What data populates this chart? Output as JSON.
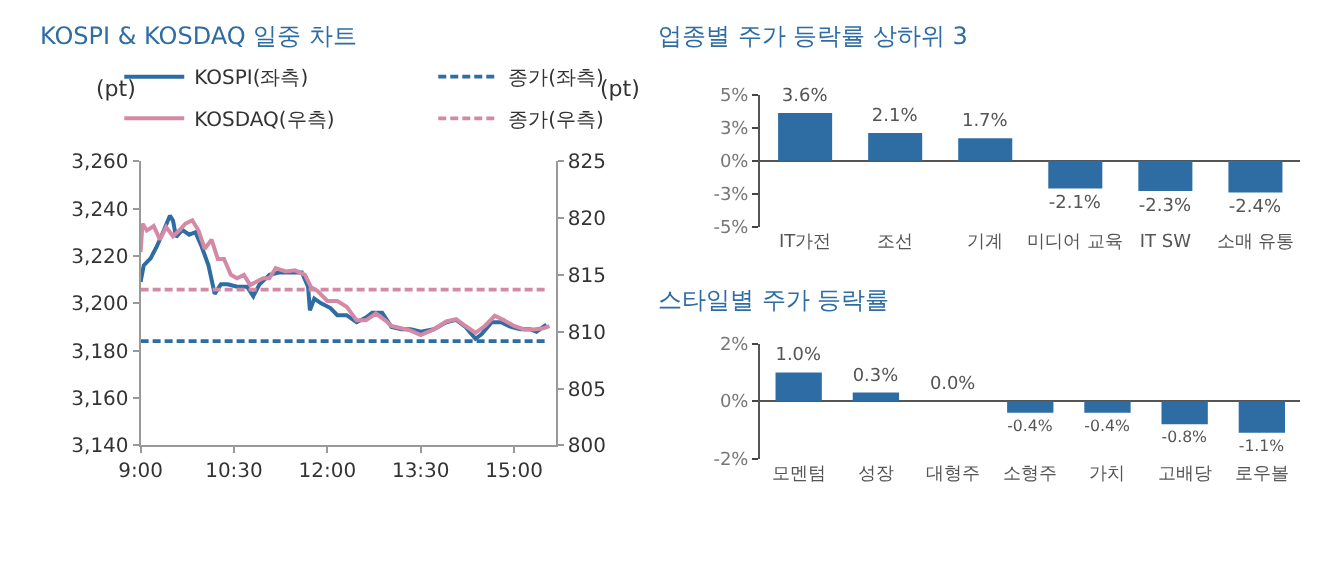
{
  "chart_data": [
    {
      "type": "line",
      "title": "KOSPI & KOSDAQ 일중 차트",
      "ylabel": "(pt)",
      "y2label": "(pt)",
      "legend": "top",
      "line_style": "solid",
      "xlim": [
        9,
        15.67
      ],
      "xticks": [
        {
          "value": 9,
          "label": "9:00"
        },
        {
          "value": 10.5,
          "label": "10:30"
        },
        {
          "value": 12,
          "label": "12:00"
        },
        {
          "value": 13.5,
          "label": "13:30"
        },
        {
          "value": 15,
          "label": "15:00"
        }
      ],
      "ylim": [
        3140,
        3260
      ],
      "yticks": [
        {
          "value": 3140,
          "label": "3,140"
        },
        {
          "value": 3160,
          "label": "3,160"
        },
        {
          "value": 3180,
          "label": "3,180"
        },
        {
          "value": 3200,
          "label": "3,200"
        },
        {
          "value": 3220,
          "label": "3,220"
        },
        {
          "value": 3240,
          "label": "3,240"
        },
        {
          "value": 3260,
          "label": "3,260"
        }
      ],
      "y2lim": [
        800,
        825
      ],
      "y2ticks": [
        800,
        805,
        810,
        815,
        820,
        825
      ],
      "series": [
        {
          "name": "KOSPI(좌측)",
          "color": "#2e6ca4",
          "axis": "y",
          "x": [
            9.0,
            9.05,
            9.16,
            9.26,
            9.36,
            9.47,
            9.52,
            9.57,
            9.67,
            9.78,
            9.88,
            9.98,
            10.09,
            10.19,
            10.29,
            10.4,
            10.55,
            10.71,
            10.81,
            10.91,
            11.07,
            11.22,
            11.43,
            11.59,
            11.69,
            11.72,
            11.79,
            11.9,
            12.05,
            12.16,
            12.31,
            12.47,
            12.62,
            12.72,
            12.88,
            13.03,
            13.19,
            13.34,
            13.5,
            13.71,
            13.91,
            14.07,
            14.22,
            14.38,
            14.48,
            14.64,
            14.79,
            14.95,
            15.1,
            15.26,
            15.36,
            15.52
          ],
          "values": [
            3209,
            3216,
            3219,
            3224,
            3230,
            3237,
            3235,
            3228,
            3231,
            3229,
            3230,
            3224,
            3216,
            3204,
            3208,
            3208,
            3207,
            3207,
            3203,
            3208,
            3212,
            3213,
            3213,
            3213,
            3207,
            3197,
            3202,
            3200,
            3198,
            3195,
            3195,
            3192,
            3194,
            3196,
            3196,
            3190,
            3189,
            3189,
            3188,
            3189,
            3192,
            3193,
            3190,
            3185,
            3187,
            3192,
            3192,
            3190,
            3189,
            3189,
            3188,
            3191
          ]
        },
        {
          "name": "종가(좌측)",
          "color": "#2e6ca4",
          "axis": "y",
          "line_style": "dashed",
          "x": [
            9.0,
            15.55
          ],
          "values": [
            3184,
            3184
          ]
        },
        {
          "name": "KOSDAQ(우측)",
          "color": "#d48aa5",
          "axis": "y2",
          "x": [
            9.0,
            9.03,
            9.1,
            9.21,
            9.31,
            9.41,
            9.52,
            9.62,
            9.72,
            9.83,
            9.93,
            10.03,
            10.14,
            10.24,
            10.34,
            10.45,
            10.55,
            10.66,
            10.76,
            10.86,
            10.97,
            11.07,
            11.17,
            11.33,
            11.48,
            11.64,
            11.74,
            11.84,
            12.0,
            12.16,
            12.31,
            12.47,
            12.62,
            12.78,
            12.93,
            13.03,
            13.19,
            13.34,
            13.5,
            13.71,
            13.91,
            14.07,
            14.22,
            14.38,
            14.53,
            14.69,
            14.84,
            15.0,
            15.16,
            15.31,
            15.47,
            15.57
          ],
          "values": [
            817.0,
            819.5,
            818.9,
            819.3,
            818.1,
            819.2,
            818.4,
            818.9,
            819.5,
            819.8,
            818.9,
            817.3,
            818.1,
            816.4,
            816.4,
            815.0,
            814.7,
            815.0,
            814.1,
            814.4,
            814.7,
            814.7,
            815.6,
            815.3,
            815.4,
            815.0,
            813.9,
            813.6,
            812.7,
            812.7,
            812.2,
            811.0,
            811.0,
            811.6,
            811.0,
            810.5,
            810.3,
            810.1,
            809.7,
            810.2,
            810.9,
            811.1,
            810.5,
            809.9,
            810.5,
            811.4,
            811.0,
            810.5,
            810.2,
            810.2,
            810.3,
            810.5
          ]
        },
        {
          "name": "종가(우측)",
          "color": "#d48aa5",
          "axis": "y2",
          "line_style": "dashed",
          "x": [
            9.0,
            15.55
          ],
          "values": [
            813.7,
            813.7
          ]
        }
      ]
    },
    {
      "type": "bar",
      "title": "업종별 주가 등락률 상하위 3",
      "categories": [
        "IT가전",
        "조선",
        "기계",
        "미디어 교육",
        "IT SW",
        "소매 유통"
      ],
      "values": [
        3.6,
        2.1,
        1.7,
        -2.1,
        -2.3,
        -2.4
      ],
      "value_labels": [
        "3.6%",
        "2.1%",
        "1.7%",
        "-2.1%",
        "-2.3%",
        "-2.4%"
      ],
      "color": "#2e6ca4",
      "ylim": [
        -5,
        5
      ],
      "yticks": [
        {
          "value": 5,
          "label": "5%"
        },
        {
          "value": 2.5,
          "label": "3%"
        },
        {
          "value": 0,
          "label": "0%"
        },
        {
          "value": -2.5,
          "label": "-3%"
        },
        {
          "value": -5,
          "label": "-5%"
        }
      ]
    },
    {
      "type": "bar",
      "title": "스타일별 주가 등락률",
      "categories": [
        "모멘텀",
        "성장",
        "대형주",
        "소형주",
        "가치",
        "고배당",
        "로우볼"
      ],
      "values": [
        1.0,
        0.3,
        0.0,
        -0.4,
        -0.4,
        -0.8,
        -1.1
      ],
      "value_labels": [
        "1.0%",
        "0.3%",
        "0.0%",
        "-0.4%",
        "-0.4%",
        "-0.8%",
        "-1.1%"
      ],
      "color": "#2e6ca4",
      "ylim": [
        -2,
        2
      ],
      "yticks": [
        {
          "value": 2,
          "label": "2%"
        },
        {
          "value": 0,
          "label": "0%"
        },
        {
          "value": -2,
          "label": "-2%"
        }
      ]
    }
  ]
}
